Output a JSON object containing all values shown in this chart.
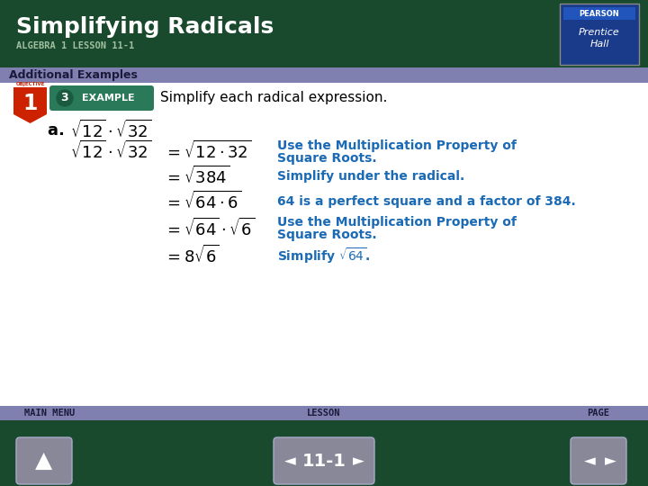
{
  "title": "Simplifying Radicals",
  "subtitle": "ALGEBRA 1 LESSON 11-1",
  "section_label": "Additional Examples",
  "header_bg": "#1a4a2e",
  "section_bg": "#8080b0",
  "body_bg": "#ffffff",
  "footer_bg": "#1a4a2e",
  "footer_bar_bg": "#8080b0",
  "example_label_bg": "#2a7a5a",
  "objective_bg": "#cc2200",
  "intro_text": "Simplify each radical expression.",
  "blue_color": "#1a6ab5",
  "footer_lesson": "11-1"
}
